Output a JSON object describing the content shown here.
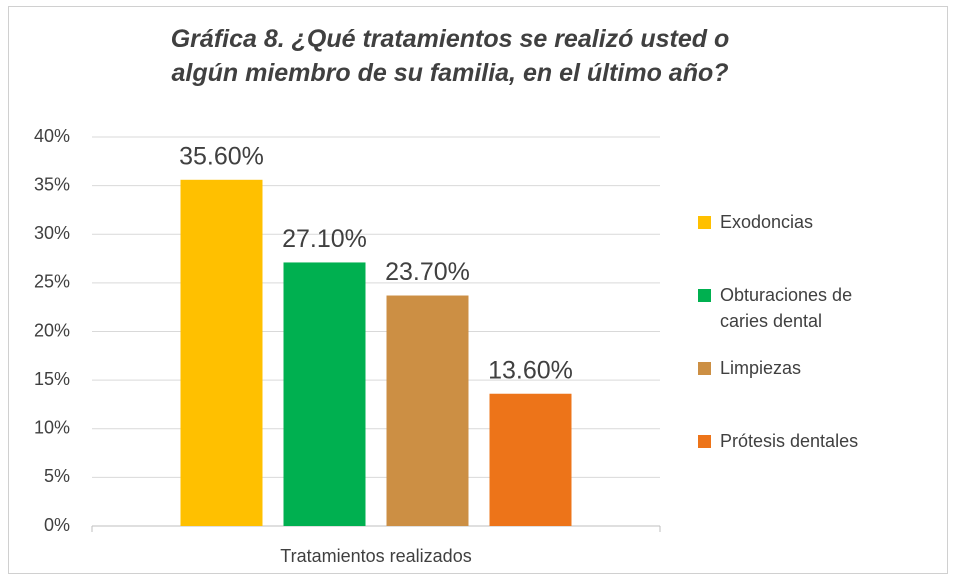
{
  "chart_data": {
    "type": "bar",
    "title": "Gráfica 8. ¿Qué tratamientos se realizó usted o algún miembro de su familia, en el último año?",
    "categories": [
      "Tratamientos realizados"
    ],
    "series": [
      {
        "name": "Exodoncias",
        "color": "#ffc000",
        "values": [
          35.6
        ],
        "value_labels": [
          "35.60%"
        ]
      },
      {
        "name": "Obturaciones de caries dental",
        "color": "#00b050",
        "values": [
          27.1
        ],
        "value_labels": [
          "27.10%"
        ]
      },
      {
        "name": "Limpiezas",
        "color": "#cc8f44",
        "values": [
          23.7
        ],
        "value_labels": [
          "23.70%"
        ]
      },
      {
        "name": "Prótesis dentales",
        "color": "#ed7419",
        "values": [
          13.6
        ],
        "value_labels": [
          "13.60%"
        ]
      }
    ],
    "ylim": [
      0,
      40
    ],
    "yticks": [
      {
        "value": 0,
        "label": "0%"
      },
      {
        "value": 5,
        "label": "5%"
      },
      {
        "value": 10,
        "label": "10%"
      },
      {
        "value": 15,
        "label": "15%"
      },
      {
        "value": 20,
        "label": "20%"
      },
      {
        "value": 25,
        "label": "25%"
      },
      {
        "value": 30,
        "label": "30%"
      },
      {
        "value": 35,
        "label": "35%"
      },
      {
        "value": 40,
        "label": "40%"
      }
    ],
    "grid": true,
    "legend": "right"
  }
}
